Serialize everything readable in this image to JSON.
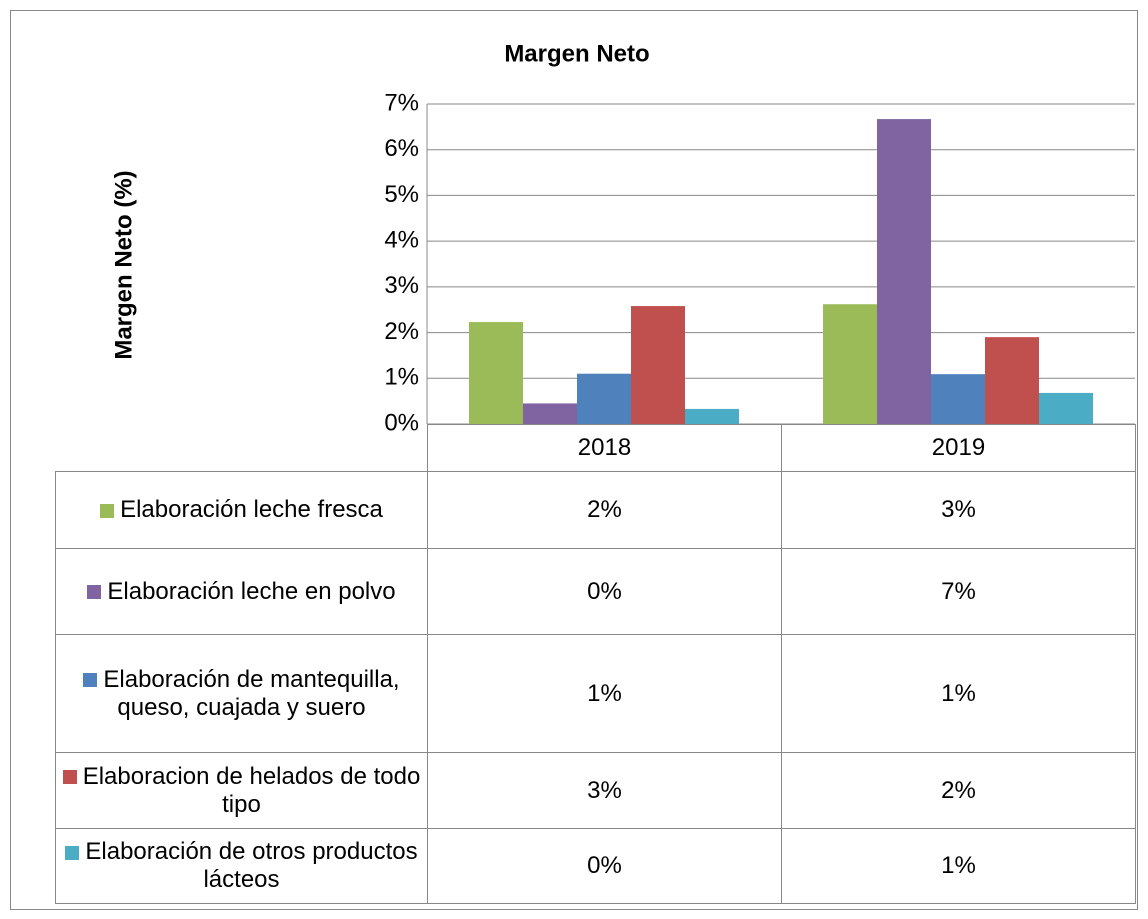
{
  "chart_data": {
    "type": "bar",
    "title": "Margen Neto",
    "y_label": "Margen Neto (%)",
    "categories": [
      "2018",
      "2019"
    ],
    "series": [
      {
        "name": "Elaboración leche fresca",
        "color": "#9bbb59",
        "values": [
          2.23,
          2.62
        ],
        "value_labels": [
          "2%",
          "3%"
        ]
      },
      {
        "name": "Elaboración leche en polvo",
        "color": "#8064a2",
        "values": [
          0.45,
          6.67
        ],
        "value_labels": [
          "0%",
          "7%"
        ]
      },
      {
        "name": "Elaboración de mantequilla, queso, cuajada y suero",
        "color": "#4f81bd",
        "values": [
          1.1,
          1.09
        ],
        "value_labels": [
          "1%",
          "1%"
        ]
      },
      {
        "name": "Elaboracion de helados de todo tipo",
        "color": "#c0504d",
        "values": [
          2.58,
          1.9
        ],
        "value_labels": [
          "3%",
          "2%"
        ]
      },
      {
        "name": "Elaboración de otros productos lácteos",
        "color": "#4bacc6",
        "values": [
          0.33,
          0.68
        ],
        "value_labels": [
          "0%",
          "1%"
        ]
      }
    ],
    "ylim": [
      0,
      7
    ],
    "yticks": [
      {
        "value": 0,
        "label": "0%"
      },
      {
        "value": 1,
        "label": "1%"
      },
      {
        "value": 2,
        "label": "2%"
      },
      {
        "value": 3,
        "label": "3%"
      },
      {
        "value": 4,
        "label": "4%"
      },
      {
        "value": 5,
        "label": "5%"
      },
      {
        "value": 6,
        "label": "6%"
      },
      {
        "value": 7,
        "label": "7%"
      }
    ],
    "grid": true
  }
}
